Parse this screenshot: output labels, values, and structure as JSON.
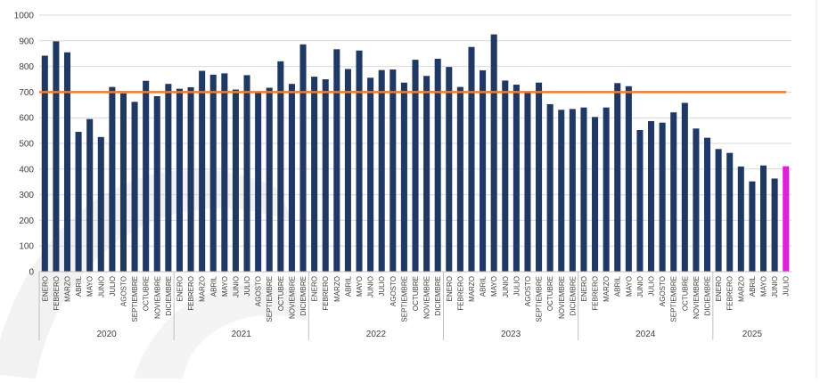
{
  "chart_data": {
    "type": "bar",
    "title": "",
    "xlabel": "",
    "ylabel": "",
    "ylim": [
      0,
      1000
    ],
    "yticks": [
      0,
      100,
      200,
      300,
      400,
      500,
      600,
      700,
      800,
      900,
      1000
    ],
    "grid": true,
    "reference_line": {
      "value": 700,
      "color": "#ED7D31"
    },
    "colors": {
      "bar": "#1F3864",
      "highlight": "#E020D8",
      "grid": "#D9D9D9",
      "axis": "#BFBFBF"
    },
    "highlight_index": 66,
    "years": [
      {
        "label": "2020",
        "months": [
          "ENERO",
          "FEBRERO",
          "MARZO",
          "ABRIL",
          "MAYO",
          "JUNIO",
          "JULIO",
          "AGOSTO",
          "SEPTIEMBRE",
          "OCTUBRE",
          "NOVIEMBRE",
          "DICIEMBRE"
        ],
        "values": [
          842,
          898,
          855,
          545,
          595,
          525,
          720,
          695,
          662,
          744,
          684,
          732
        ]
      },
      {
        "label": "2021",
        "months": [
          "ENERO",
          "FEBRERO",
          "MARZO",
          "ABRIL",
          "MAYO",
          "JUNIO",
          "JULIO",
          "AGOSTO",
          "SEPTIEMBRE",
          "OCTUBRE",
          "NOVIEMBRE",
          "DICIEMBRE"
        ],
        "values": [
          713,
          719,
          783,
          768,
          773,
          710,
          766,
          698,
          717,
          820,
          732,
          886
        ]
      },
      {
        "label": "2022",
        "months": [
          "ENERO",
          "FEBRERO",
          "MARZO",
          "ABRIL",
          "MAYO",
          "JUNIO",
          "JULIO",
          "AGOSTO",
          "SEPTIEMBRE",
          "OCTUBRE",
          "NOVIEMBRE",
          "DICIEMBRE"
        ],
        "values": [
          760,
          750,
          867,
          790,
          862,
          756,
          786,
          788,
          737,
          826,
          763,
          830
        ]
      },
      {
        "label": "2023",
        "months": [
          "ENERO",
          "FEBRERO",
          "MARZO",
          "ABRIL",
          "MAYO",
          "JUNIO",
          "JULIO",
          "AGOSTO",
          "SEPTIEMBRE",
          "OCTUBRE",
          "NOVIEMBRE",
          "DICIEMBRE"
        ],
        "values": [
          798,
          720,
          876,
          785,
          925,
          745,
          729,
          702,
          737,
          653,
          631,
          634
        ]
      },
      {
        "label": "2024",
        "months": [
          "ENERO",
          "FEBRERO",
          "MARZO",
          "ABRIL",
          "MAYO",
          "JUNIO",
          "JULIO",
          "AGOSTO",
          "SEPTIEMBRE",
          "OCTUBRE",
          "NOVIEMBRE",
          "DICIEMBRE"
        ],
        "values": [
          640,
          603,
          640,
          735,
          723,
          552,
          587,
          581,
          621,
          658,
          558,
          522
        ]
      },
      {
        "label": "2025",
        "months": [
          "ENERO",
          "FEBRERO",
          "MARZO",
          "ABRIL",
          "MAYO",
          "JUNIO",
          "JULIO"
        ],
        "values": [
          478,
          463,
          410,
          352,
          414,
          363,
          411
        ]
      }
    ]
  }
}
